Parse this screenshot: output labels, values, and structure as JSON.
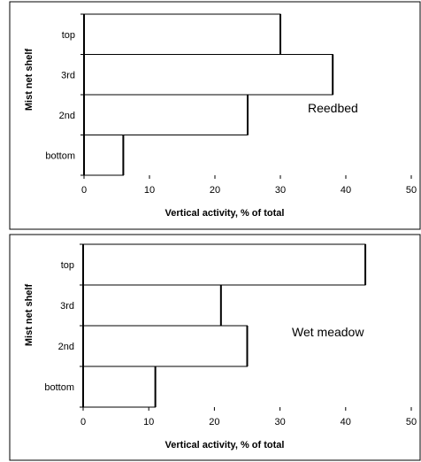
{
  "chart_data": [
    {
      "type": "bar",
      "orientation": "horizontal",
      "categories": [
        "bottom",
        "2nd",
        "3rd",
        "top"
      ],
      "values": [
        6,
        25,
        38,
        30
      ],
      "annotation": "Reedbed",
      "xlabel": "Vertical activity, % of total",
      "ylabel": "Mist net shelf",
      "xlim": [
        0,
        50
      ],
      "xticks": [
        "0",
        "10",
        "20",
        "30",
        "40",
        "50"
      ],
      "grid": false,
      "legend": "none"
    },
    {
      "type": "bar",
      "orientation": "horizontal",
      "categories": [
        "bottom",
        "2nd",
        "3rd",
        "top"
      ],
      "values": [
        11,
        25,
        21,
        43
      ],
      "annotation": "Wet meadow",
      "xlabel": "Vertical activity, % of total",
      "ylabel": "Mist net shelf",
      "xlim": [
        0,
        50
      ],
      "xticks": [
        "0",
        "10",
        "20",
        "30",
        "40",
        "50"
      ],
      "grid": false,
      "legend": "none"
    }
  ]
}
